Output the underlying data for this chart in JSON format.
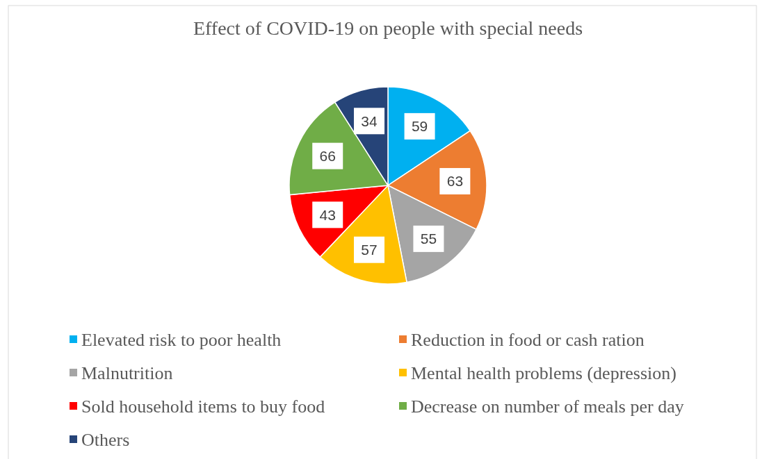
{
  "chart_data": {
    "type": "pie",
    "title": "Effect of COVID-19 on people with special needs",
    "categories": [
      "Elevated risk to poor health",
      "Reduction in food or cash ration",
      "Malnutrition",
      "Mental health problems (depression)",
      "Sold household items to buy food",
      "Decrease on number of meals per day",
      "Others"
    ],
    "values": [
      59,
      63,
      55,
      57,
      43,
      66,
      34
    ],
    "colors": [
      "#00b0f0",
      "#ed7d31",
      "#a5a5a5",
      "#ffc000",
      "#ff0000",
      "#70ad47",
      "#264478"
    ],
    "data_labels": true,
    "legend": "bottom"
  }
}
